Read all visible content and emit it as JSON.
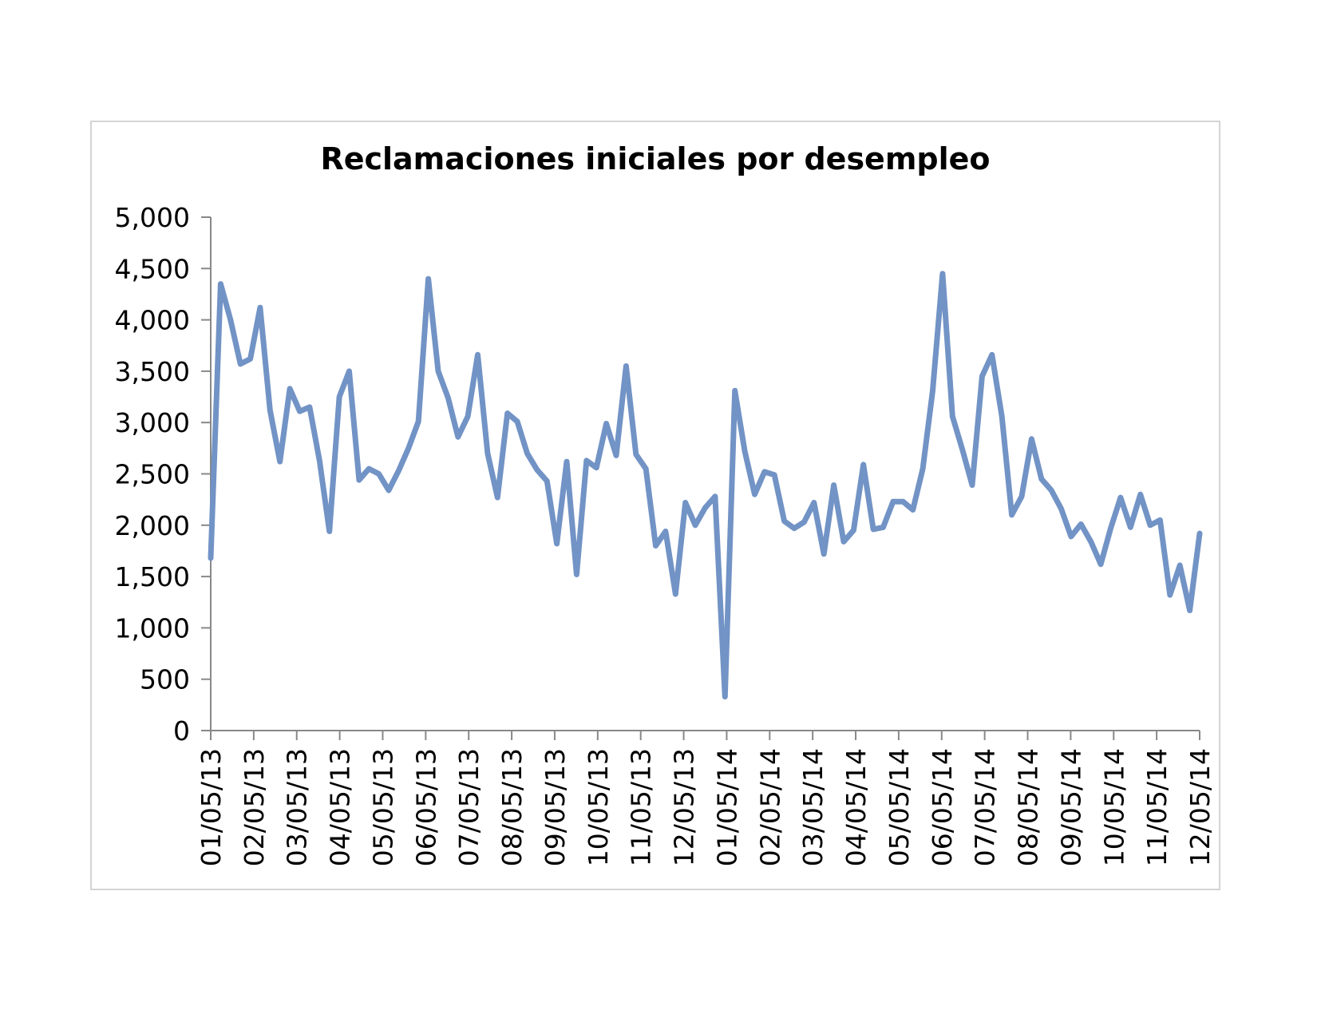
{
  "chart_data": {
    "type": "line",
    "title": "Reclamaciones iniciales por desempleo",
    "xlabel": "",
    "ylabel": "",
    "ylim": [
      0,
      5000
    ],
    "y_ticks": [
      "0",
      "500",
      "1,000",
      "1,500",
      "2,000",
      "2,500",
      "3,000",
      "3,500",
      "4,000",
      "4,500",
      "5,000"
    ],
    "x_tick_labels": [
      "01/05/13",
      "02/05/13",
      "03/05/13",
      "04/05/13",
      "05/05/13",
      "06/05/13",
      "07/05/13",
      "08/05/13",
      "09/05/13",
      "10/05/13",
      "11/05/13",
      "12/05/13",
      "01/05/14",
      "02/05/14",
      "03/05/14",
      "04/05/14",
      "05/05/14",
      "06/05/14",
      "07/05/14",
      "08/05/14",
      "09/05/14",
      "10/05/14",
      "11/05/14",
      "12/05/14"
    ],
    "grid": false,
    "line_color": "#7293c5",
    "series": [
      {
        "values": [
          1680,
          4350,
          4000,
          3570,
          3620,
          4120,
          3120,
          2620,
          3330,
          3110,
          3150,
          2630,
          1940,
          3250,
          3500,
          2440,
          2550,
          2500,
          2340,
          2530,
          2750,
          3010,
          4400,
          3500,
          3240,
          2860,
          3060,
          3660,
          2700,
          2270,
          3090,
          3010,
          2700,
          2540,
          2430,
          1820,
          2620,
          1520,
          2630,
          2560,
          2990,
          2680,
          3550,
          2690,
          2550,
          1800,
          1940,
          1330,
          2220,
          2000,
          2170,
          2280,
          330,
          3310,
          2720,
          2300,
          2520,
          2490,
          2040,
          1970,
          2030,
          2220,
          1720,
          2390,
          1840,
          1950,
          2590,
          1960,
          1980,
          2230,
          2230,
          2150,
          2550,
          3310,
          4450,
          3060,
          2740,
          2390,
          3450,
          3660,
          3060,
          2100,
          2280,
          2840,
          2450,
          2340,
          2160,
          1890,
          2010,
          1840,
          1620,
          1970,
          2270,
          1980,
          2300,
          2000,
          2050,
          1320,
          1610,
          1170,
          1920
        ]
      }
    ]
  }
}
